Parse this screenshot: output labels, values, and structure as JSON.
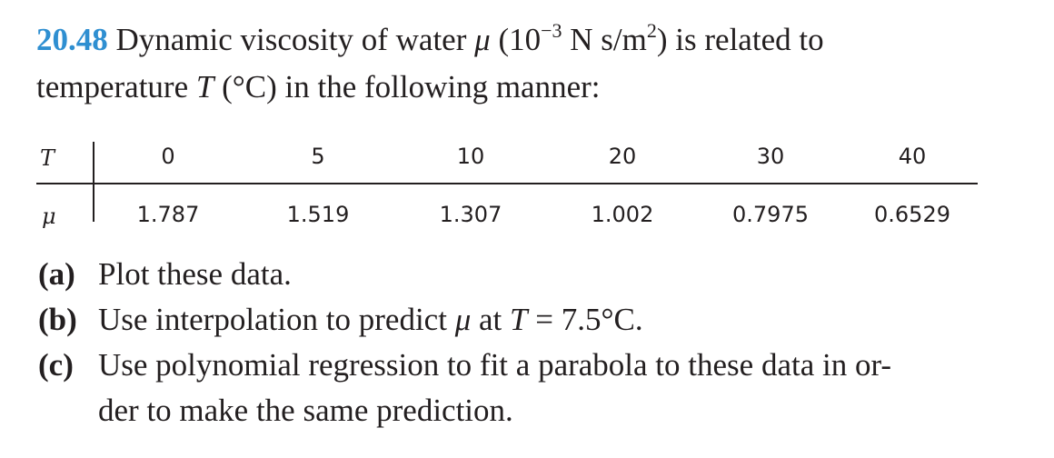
{
  "problem": {
    "number": "20.48",
    "statement_line1": [
      "Dynamic viscosity of water ",
      "μ",
      " (10",
      "−3",
      " N s/m",
      "2",
      ") is related to"
    ],
    "statement_line2": [
      "temperature ",
      "T",
      " (°C) in the following manner:"
    ]
  },
  "table": {
    "row_headers": [
      "T",
      "μ"
    ],
    "rows": [
      [
        0,
        5,
        10,
        20,
        30,
        40
      ],
      [
        1.787,
        1.519,
        1.307,
        1.002,
        0.7975,
        0.6529
      ]
    ]
  },
  "parts": [
    {
      "label": "(a)",
      "lines": [
        [
          "Plot these data."
        ]
      ]
    },
    {
      "label": "(b)",
      "lines": [
        [
          "Use interpolation to predict ",
          "μ",
          " at ",
          "T",
          " = 7.5°C."
        ]
      ]
    },
    {
      "label": "(c)",
      "lines": [
        [
          "Use polynomial regression to fit a parabola to these data in or-"
        ],
        [
          "der to make the same prediction."
        ]
      ]
    }
  ]
}
